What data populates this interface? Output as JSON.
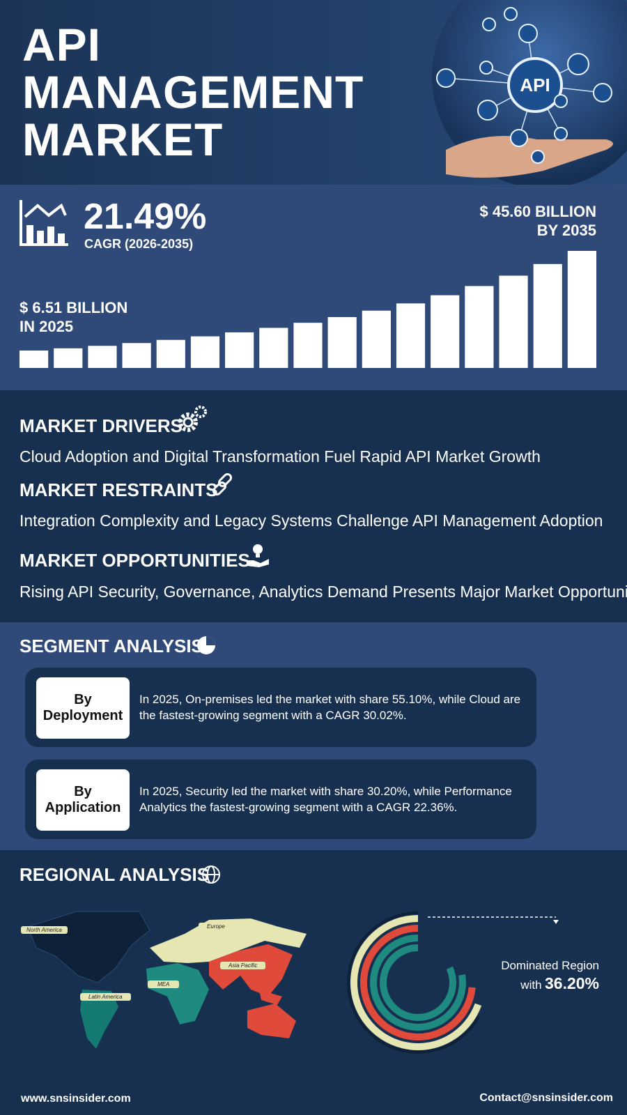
{
  "header": {
    "title_lines": [
      "API",
      "MANAGEMENT",
      "MARKET"
    ]
  },
  "stats": {
    "cagr": "21.49%",
    "cagr_label": "CAGR (2026-2035)",
    "end_value": "$ 45.60 BILLION",
    "end_year": "BY 2035",
    "start_value": "$ 6.51 BILLION",
    "start_year": "IN 2025"
  },
  "dynamics": [
    {
      "heading": "MARKET DRIVERS",
      "text": "Cloud Adoption and Digital Transformation Fuel Rapid API Market Growth"
    },
    {
      "heading": "MARKET RESTRAINTS",
      "text": "Integration Complexity and Legacy Systems Challenge API Management Adoption"
    },
    {
      "heading": "MARKET OPPORTUNITIES",
      "text": "Rising API Security, Governance, Analytics Demand Presents Major Market Opportunity"
    }
  ],
  "segment": {
    "heading": "SEGMENT ANALYSIS",
    "cards": [
      {
        "label_lines": [
          "By",
          "Deployment"
        ],
        "text": "In 2025, On-premises led the market with share 55.10%, while Cloud are the fastest-growing segment with a CAGR 30.02%."
      },
      {
        "label_lines": [
          "By",
          "Application"
        ],
        "text": "In 2025, Security led the market with share 30.20%, while Performance Analytics the fastest-growing segment with a CAGR 22.36%."
      }
    ]
  },
  "regional": {
    "heading": "REGIONAL ANALYSIS",
    "map_labels": [
      "North America",
      "Europe",
      "Asia Pacific",
      "MEA",
      "Latin America"
    ],
    "dominated_label": "Dominated Region",
    "dominated_with": "with",
    "dominated_share": "36.20%"
  },
  "footer": {
    "website": "www.snsinsider.com",
    "contact": "Contact@snsinsider.com"
  }
}
